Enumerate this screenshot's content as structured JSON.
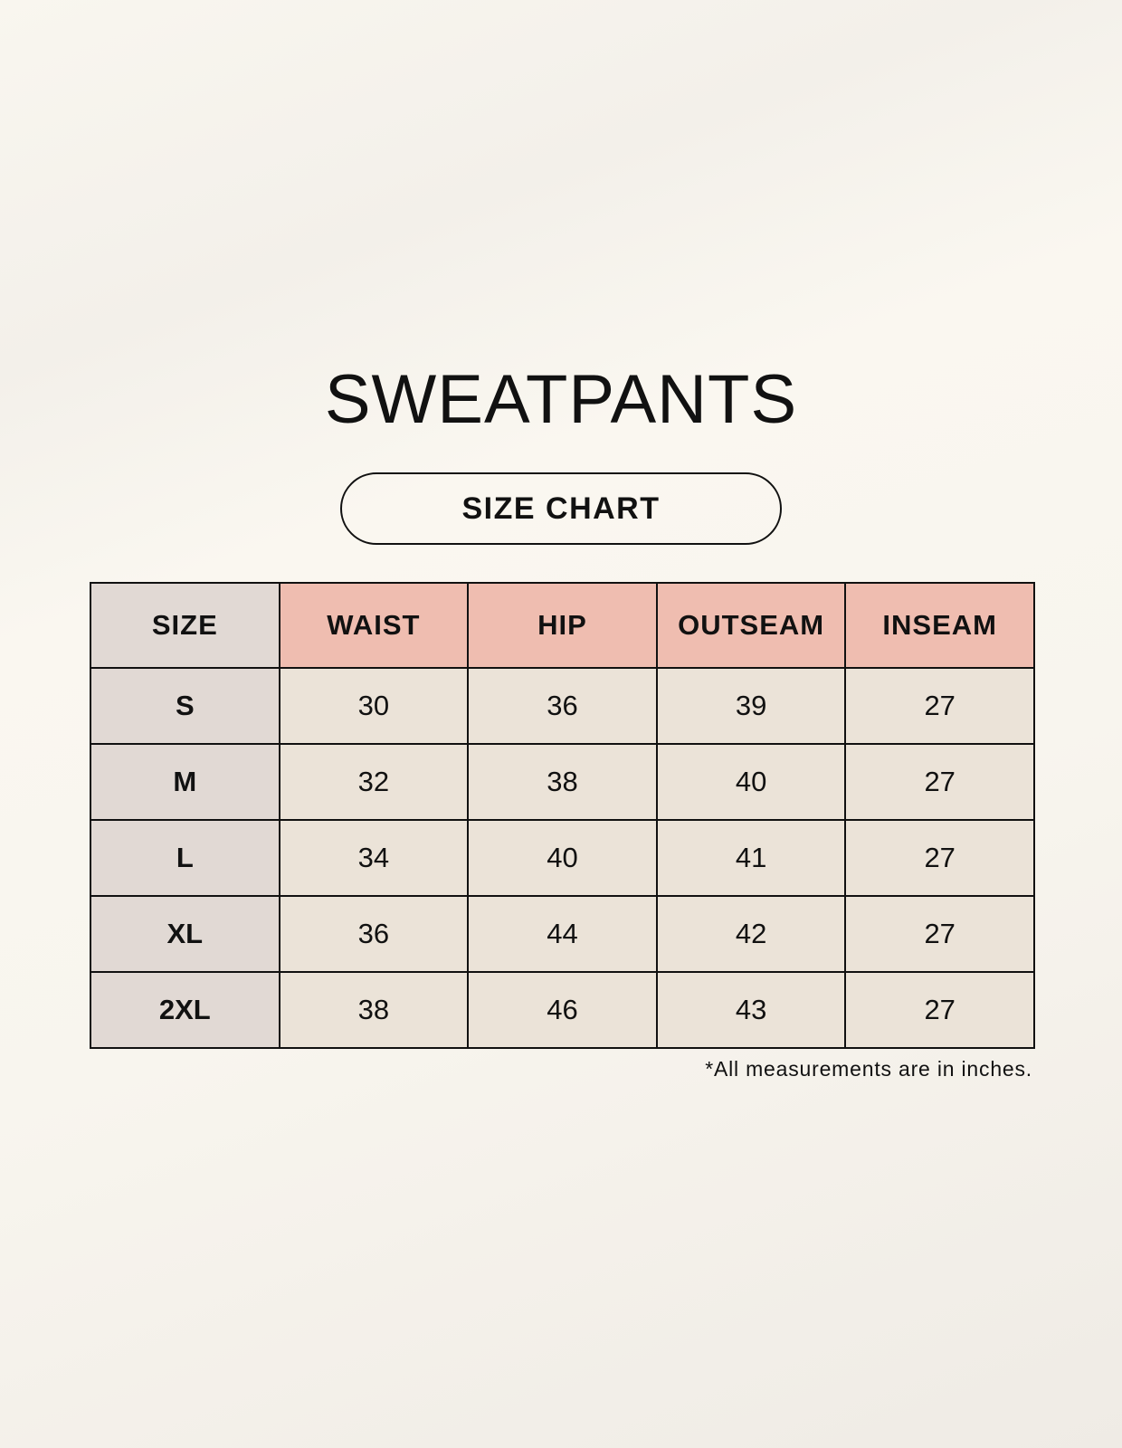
{
  "title": "SWEATPANTS",
  "subtitle": "SIZE CHART",
  "table": {
    "headers": [
      "SIZE",
      "WAIST",
      "HIP",
      "OUTSEAM",
      "INSEAM"
    ],
    "rows": [
      [
        "S",
        "30",
        "36",
        "39",
        "27"
      ],
      [
        "M",
        "32",
        "38",
        "40",
        "27"
      ],
      [
        "L",
        "34",
        "40",
        "41",
        "27"
      ],
      [
        "XL",
        "36",
        "44",
        "42",
        "27"
      ],
      [
        "2XL",
        "38",
        "46",
        "43",
        "27"
      ]
    ]
  },
  "footnote": "*All measurements are in inches.",
  "colors": {
    "header_accent": "#efbdb0",
    "size_column": "#e1d9d4",
    "cell": "#ebe3d8"
  }
}
